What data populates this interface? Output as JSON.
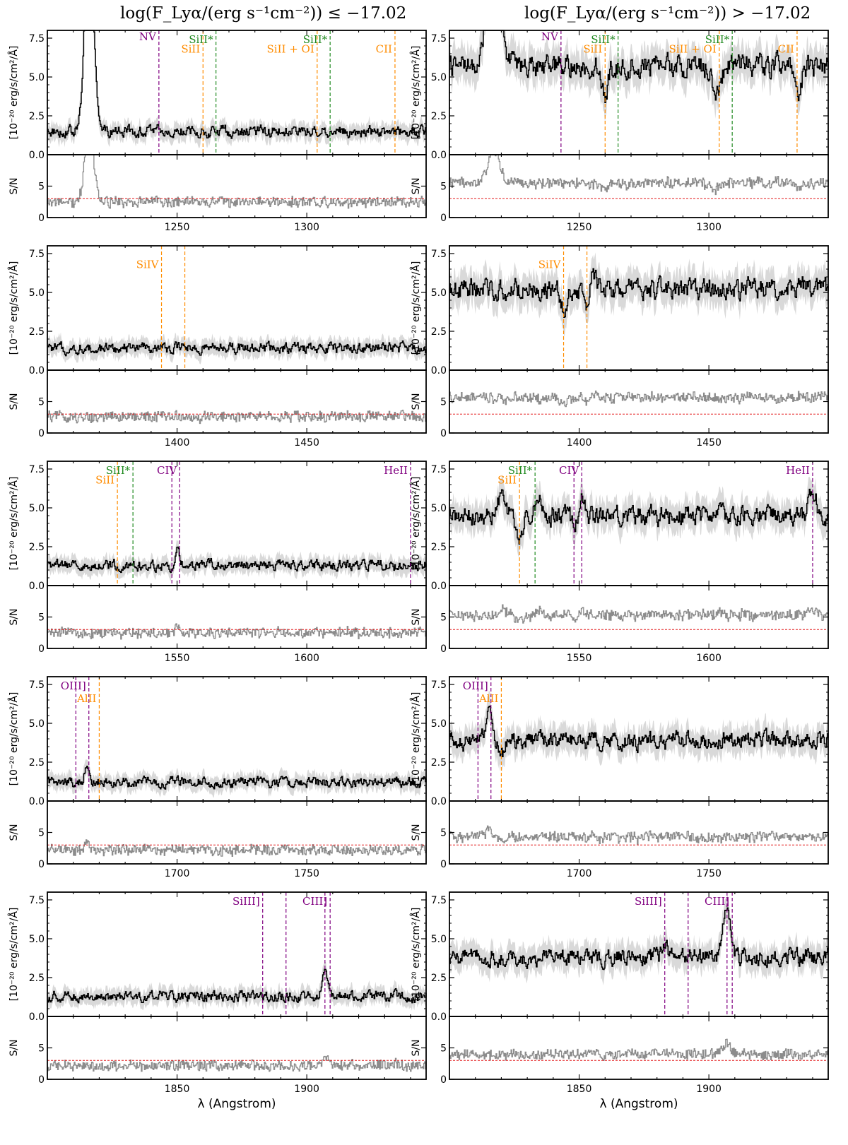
{
  "titles": {
    "left": "log(F_Lyα/(erg s⁻¹cm⁻²)) ≤ −17.02",
    "right": "log(F_Lyα/(erg s⁻¹cm⁻²)) > −17.02"
  },
  "axis_labels": {
    "flux_y": "[10⁻²⁰ erg/s/cm²/Å]",
    "sn_y": "S/N",
    "x": "λ (Angstrom)"
  },
  "colors": {
    "spectrum": "#000000",
    "error_band": "#d9d9d9",
    "sn_line": "#8c8c8c",
    "sn_threshold": "#e41a1c",
    "low_ion": "#ff8c00",
    "fine_structure": "#228b22",
    "high_ion": "#800080"
  },
  "chart_data": [
    {
      "type": "line",
      "column": "left",
      "row": 1,
      "xlim": [
        1200,
        1346
      ],
      "ylim": [
        0,
        8
      ],
      "sn_ylim": [
        0,
        10
      ],
      "xticks": [
        1250,
        1300
      ],
      "yticks": [
        "0.0",
        "2.5",
        "5.0",
        "7.5"
      ],
      "sn_yticks": [
        "0",
        "5"
      ],
      "sn_threshold": 3,
      "continuum": 1.5,
      "sn_level": 2.5,
      "features": [
        {
          "x": 1216,
          "peak": 14,
          "sigma": 1.6
        }
      ],
      "lines": [
        {
          "x": 1243,
          "color": "#800080",
          "label": "NV",
          "label_y": 7.6
        },
        {
          "x": 1260,
          "color": "#ff8c00",
          "label": "SiII",
          "label_y": 6.8
        },
        {
          "x": 1265,
          "color": "#228b22",
          "label": "SiII*",
          "label_y": 7.4
        },
        {
          "x": 1304,
          "color": "#ff8c00",
          "label": "SiII + OI",
          "label_y": 6.8
        },
        {
          "x": 1309,
          "color": "#228b22",
          "label": "SiII*",
          "label_y": 7.4
        },
        {
          "x": 1334,
          "color": "#ff8c00",
          "label": "CII",
          "label_y": 6.8
        }
      ]
    },
    {
      "type": "line",
      "column": "right",
      "row": 1,
      "xlim": [
        1200,
        1346
      ],
      "ylim": [
        0,
        8
      ],
      "sn_ylim": [
        0,
        10
      ],
      "xticks": [
        1250,
        1300
      ],
      "yticks": [
        "0.0",
        "2.5",
        "5.0",
        "7.5"
      ],
      "sn_yticks": [
        "0",
        "5"
      ],
      "sn_threshold": 3,
      "continuum": 5.7,
      "sn_level": 5.5,
      "features": [
        {
          "x": 1217,
          "peak": 10,
          "sigma": 2.2
        },
        {
          "x": 1260,
          "peak": -2.0,
          "sigma": 1.2
        },
        {
          "x": 1303,
          "peak": -1.6,
          "sigma": 1.5
        },
        {
          "x": 1334,
          "peak": -2.2,
          "sigma": 1.2
        }
      ],
      "lines": [
        {
          "x": 1243,
          "color": "#800080",
          "label": "NV",
          "label_y": 7.6
        },
        {
          "x": 1260,
          "color": "#ff8c00",
          "label": "SiII",
          "label_y": 6.8
        },
        {
          "x": 1265,
          "color": "#228b22",
          "label": "SiII*",
          "label_y": 7.4
        },
        {
          "x": 1304,
          "color": "#ff8c00",
          "label": "SiII + OI",
          "label_y": 6.8
        },
        {
          "x": 1309,
          "color": "#228b22",
          "label": "SiII*",
          "label_y": 7.4
        },
        {
          "x": 1334,
          "color": "#ff8c00",
          "label": "CII",
          "label_y": 6.8
        }
      ]
    },
    {
      "type": "line",
      "column": "left",
      "row": 2,
      "xlim": [
        1350,
        1496
      ],
      "ylim": [
        0,
        8
      ],
      "sn_ylim": [
        0,
        10
      ],
      "xticks": [
        1400,
        1450
      ],
      "yticks": [
        "0.0",
        "2.5",
        "5.0",
        "7.5"
      ],
      "sn_yticks": [
        "0",
        "5"
      ],
      "sn_threshold": 3,
      "continuum": 1.4,
      "sn_level": 2.6,
      "features": [],
      "lines": [
        {
          "x": 1394,
          "color": "#ff8c00",
          "label": "SiIV",
          "label_y": 6.8
        },
        {
          "x": 1403,
          "color": "#ff8c00",
          "label": "",
          "label_y": 6.8
        }
      ]
    },
    {
      "type": "line",
      "column": "right",
      "row": 2,
      "xlim": [
        1350,
        1496
      ],
      "ylim": [
        0,
        8
      ],
      "sn_ylim": [
        0,
        10
      ],
      "xticks": [
        1400,
        1450
      ],
      "yticks": [
        "0.0",
        "2.5",
        "5.0",
        "7.5"
      ],
      "sn_yticks": [
        "0",
        "5"
      ],
      "sn_threshold": 3,
      "continuum": 5.2,
      "sn_level": 5.6,
      "features": [
        {
          "x": 1394,
          "peak": -1.3,
          "sigma": 1.2
        },
        {
          "x": 1403,
          "peak": -1.0,
          "sigma": 1.0
        },
        {
          "x": 1405,
          "peak": 1.5,
          "sigma": 1.0
        }
      ],
      "lines": [
        {
          "x": 1394,
          "color": "#ff8c00",
          "label": "SiIV",
          "label_y": 6.8
        },
        {
          "x": 1403,
          "color": "#ff8c00",
          "label": "",
          "label_y": 6.8
        }
      ]
    },
    {
      "type": "line",
      "column": "left",
      "row": 3,
      "xlim": [
        1500,
        1646
      ],
      "ylim": [
        0,
        8
      ],
      "sn_ylim": [
        0,
        10
      ],
      "xticks": [
        1550,
        1600
      ],
      "yticks": [
        "0.0",
        "2.5",
        "5.0",
        "7.5"
      ],
      "sn_yticks": [
        "0",
        "5"
      ],
      "sn_threshold": 3,
      "continuum": 1.3,
      "sn_level": 2.5,
      "features": [
        {
          "x": 1550,
          "peak": 1.3,
          "sigma": 0.8
        }
      ],
      "lines": [
        {
          "x": 1527,
          "color": "#ff8c00",
          "label": "SiII",
          "label_y": 6.8
        },
        {
          "x": 1533,
          "color": "#228b22",
          "label": "SiII*",
          "label_y": 7.4
        },
        {
          "x": 1548,
          "color": "#800080",
          "label": "",
          "label_y": 7.4
        },
        {
          "x": 1551,
          "color": "#800080",
          "label": "CIV",
          "label_y": 7.4
        },
        {
          "x": 1640,
          "color": "#800080",
          "label": "HeII",
          "label_y": 7.4
        }
      ]
    },
    {
      "type": "line",
      "column": "right",
      "row": 3,
      "xlim": [
        1500,
        1646
      ],
      "ylim": [
        0,
        8
      ],
      "sn_ylim": [
        0,
        10
      ],
      "xticks": [
        1550,
        1600
      ],
      "yticks": [
        "0.0",
        "2.5",
        "5.0",
        "7.5"
      ],
      "sn_yticks": [
        "0",
        "5"
      ],
      "sn_threshold": 3,
      "continuum": 4.5,
      "sn_level": 5.3,
      "features": [
        {
          "x": 1520,
          "peak": 1.4,
          "sigma": 1.5
        },
        {
          "x": 1527,
          "peak": -1.4,
          "sigma": 1.2
        },
        {
          "x": 1534,
          "peak": 1.2,
          "sigma": 1.2
        },
        {
          "x": 1548,
          "peak": -1.0,
          "sigma": 0.8
        },
        {
          "x": 1551,
          "peak": 1.5,
          "sigma": 0.9
        },
        {
          "x": 1640,
          "peak": 1.4,
          "sigma": 1.5
        }
      ],
      "lines": [
        {
          "x": 1527,
          "color": "#ff8c00",
          "label": "SiII",
          "label_y": 6.8
        },
        {
          "x": 1533,
          "color": "#228b22",
          "label": "SiII*",
          "label_y": 7.4
        },
        {
          "x": 1548,
          "color": "#800080",
          "label": "",
          "label_y": 7.4
        },
        {
          "x": 1551,
          "color": "#800080",
          "label": "CIV",
          "label_y": 7.4
        },
        {
          "x": 1640,
          "color": "#800080",
          "label": "HeII",
          "label_y": 7.4
        }
      ]
    },
    {
      "type": "line",
      "column": "left",
      "row": 4,
      "xlim": [
        1650,
        1796
      ],
      "ylim": [
        0,
        8
      ],
      "sn_ylim": [
        0,
        10
      ],
      "xticks": [
        1700,
        1750
      ],
      "yticks": [
        "0.0",
        "2.5",
        "5.0",
        "7.5"
      ],
      "sn_yticks": [
        "0",
        "5"
      ],
      "sn_threshold": 3,
      "continuum": 1.2,
      "sn_level": 2.2,
      "features": [
        {
          "x": 1665,
          "peak": 1.3,
          "sigma": 0.7
        }
      ],
      "lines": [
        {
          "x": 1661,
          "color": "#800080",
          "label": "",
          "label_y": 7.4
        },
        {
          "x": 1666,
          "color": "#800080",
          "label": "OIII]",
          "label_y": 7.4
        },
        {
          "x": 1670,
          "color": "#ff8c00",
          "label": "AlII",
          "label_y": 6.6
        }
      ]
    },
    {
      "type": "line",
      "column": "right",
      "row": 4,
      "xlim": [
        1650,
        1796
      ],
      "ylim": [
        0,
        8
      ],
      "sn_ylim": [
        0,
        10
      ],
      "xticks": [
        1700,
        1750
      ],
      "yticks": [
        "0.0",
        "2.5",
        "5.0",
        "7.5"
      ],
      "sn_yticks": [
        "0",
        "5"
      ],
      "sn_threshold": 3,
      "continuum": 3.9,
      "sn_level": 4.3,
      "features": [
        {
          "x": 1665,
          "peak": 2.5,
          "sigma": 1.0
        },
        {
          "x": 1670,
          "peak": -1.0,
          "sigma": 1.0
        }
      ],
      "lines": [
        {
          "x": 1661,
          "color": "#800080",
          "label": "",
          "label_y": 7.4
        },
        {
          "x": 1666,
          "color": "#800080",
          "label": "OIII]",
          "label_y": 7.4
        },
        {
          "x": 1670,
          "color": "#ff8c00",
          "label": "AlII",
          "label_y": 6.6
        }
      ]
    },
    {
      "type": "line",
      "column": "left",
      "row": 5,
      "xlim": [
        1800,
        1946
      ],
      "ylim": [
        0,
        8
      ],
      "sn_ylim": [
        0,
        10
      ],
      "xticks": [
        1850,
        1900
      ],
      "yticks": [
        "0.0",
        "2.5",
        "5.0",
        "7.5"
      ],
      "sn_yticks": [
        "0",
        "5"
      ],
      "sn_threshold": 3,
      "continuum": 1.3,
      "sn_level": 2.2,
      "features": [
        {
          "x": 1907,
          "peak": 1.8,
          "sigma": 0.9
        }
      ],
      "lines": [
        {
          "x": 1883,
          "color": "#800080",
          "label": "SiIII]",
          "label_y": 7.4
        },
        {
          "x": 1892,
          "color": "#800080",
          "label": "",
          "label_y": 7.4
        },
        {
          "x": 1907,
          "color": "#800080",
          "label": "",
          "label_y": 7.4
        },
        {
          "x": 1909,
          "color": "#800080",
          "label": "CIII]",
          "label_y": 7.4
        }
      ]
    },
    {
      "type": "line",
      "column": "right",
      "row": 5,
      "xlim": [
        1800,
        1946
      ],
      "ylim": [
        0,
        8
      ],
      "sn_ylim": [
        0,
        10
      ],
      "xticks": [
        1850,
        1900
      ],
      "yticks": [
        "0.0",
        "2.5",
        "5.0",
        "7.5"
      ],
      "sn_yticks": [
        "0",
        "5"
      ],
      "sn_threshold": 3,
      "continuum": 3.8,
      "sn_level": 4.0,
      "features": [
        {
          "x": 1883,
          "peak": 1.0,
          "sigma": 1.0
        },
        {
          "x": 1907,
          "peak": 3.5,
          "sigma": 1.4
        }
      ],
      "lines": [
        {
          "x": 1883,
          "color": "#800080",
          "label": "SiIII]",
          "label_y": 7.4
        },
        {
          "x": 1892,
          "color": "#800080",
          "label": "",
          "label_y": 7.4
        },
        {
          "x": 1907,
          "color": "#800080",
          "label": "",
          "label_y": 7.4
        },
        {
          "x": 1909,
          "color": "#800080",
          "label": "CIII]",
          "label_y": 7.4
        }
      ]
    }
  ]
}
